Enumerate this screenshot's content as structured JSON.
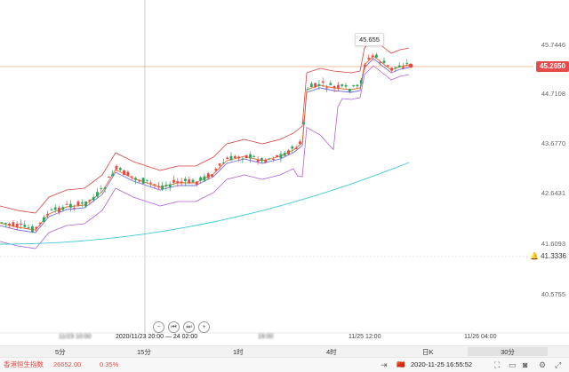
{
  "price_axis": {
    "levels": [
      "45.7446",
      "44.7108",
      "43.6770",
      "42.6431",
      "41.6093",
      "40.5755"
    ],
    "current": "45.2650",
    "low_marker": "41.3336"
  },
  "hover_value": "45.655",
  "crosshair_time": "2020/11/23 20:00",
  "time_labels": [
    {
      "text": "11/23 10:00",
      "blurred": true
    },
    {
      "text": "2020/11/23 20:00 — 24 02:00",
      "blurred": false
    },
    {
      "text": "19:00",
      "blurred": true
    },
    {
      "text": "11/25 12:00",
      "blurred": true
    },
    {
      "text": "11/26 04:00",
      "blurred": false
    }
  ],
  "zoom_controls": [
    "−",
    "⏮",
    "⏭",
    "+"
  ],
  "periods": [
    "5分",
    "15分",
    "1时",
    "4时",
    "日K",
    "30分"
  ],
  "status": {
    "index_name": "香港恒生指数",
    "index_value": "26652.00",
    "index_change": "0.35%",
    "datetime": "2020-11-25 16:55:52",
    "flag": "🇨🇳"
  },
  "colors": {
    "up": "#e8473f",
    "down": "#2aa65c",
    "ma_fast": "#e26b2b",
    "ma_mid": "#7a6fe0",
    "band": "#d8423d",
    "band_low": "#b260d8",
    "ma_slow": "#3fc9d6",
    "current_line": "#f0a878"
  }
}
